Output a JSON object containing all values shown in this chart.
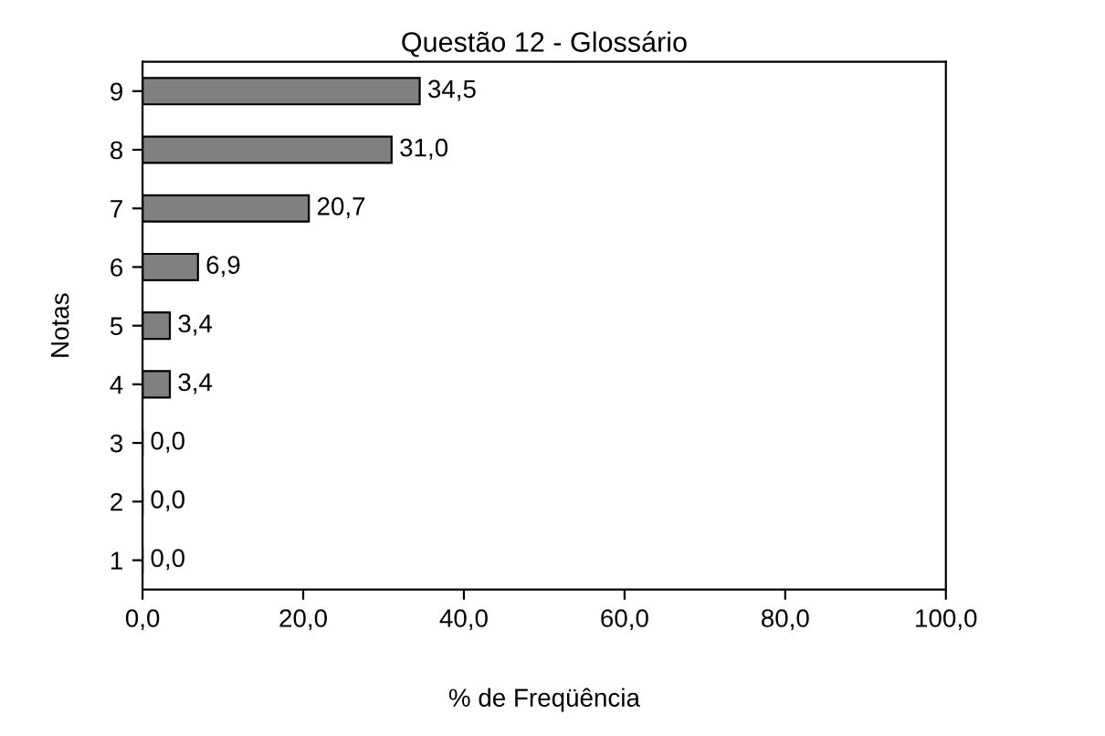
{
  "chart_data": {
    "type": "bar",
    "orientation": "horizontal",
    "title": "Questão 12 - Glossário",
    "xlabel": "% de Freqüência",
    "ylabel": "Notas",
    "categories": [
      "9",
      "8",
      "7",
      "6",
      "5",
      "4",
      "3",
      "2",
      "1"
    ],
    "values": [
      34.5,
      31.0,
      20.7,
      6.9,
      3.4,
      3.4,
      0.0,
      0.0,
      0.0
    ],
    "value_labels": [
      "34,5",
      "31,0",
      "20,7",
      "6,9",
      "3,4",
      "3,4",
      "0,0",
      "0,0",
      "0,0"
    ],
    "color": "#808080",
    "xlim": [
      0,
      100
    ],
    "xticks": [
      {
        "value": 0,
        "label": "0,0"
      },
      {
        "value": 20,
        "label": "20,0"
      },
      {
        "value": 40,
        "label": "40,0"
      },
      {
        "value": 60,
        "label": "60,0"
      },
      {
        "value": 80,
        "label": "80,0"
      },
      {
        "value": 100,
        "label": "100,0"
      }
    ],
    "grid": false,
    "legend": false
  }
}
